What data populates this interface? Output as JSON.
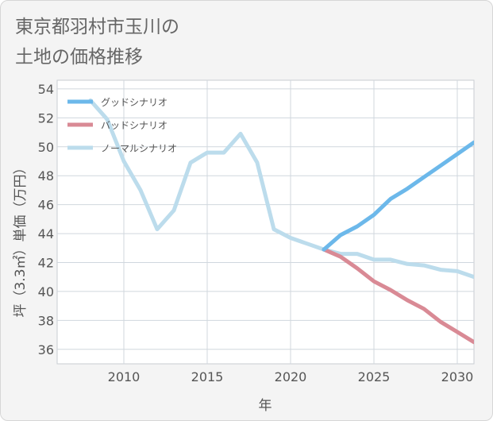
{
  "title_lines": [
    "東京都羽村市玉川の",
    "土地の価格推移"
  ],
  "chart_data": {
    "type": "line",
    "title": "東京都羽村市玉川の土地の価格推移",
    "xlabel": "年",
    "ylabel": "坪（3.3㎡）単価（万円）",
    "xlim": [
      2006,
      2031
    ],
    "ylim": [
      35,
      54.6
    ],
    "x_ticks": [
      2010,
      2015,
      2020,
      2025,
      2030
    ],
    "y_ticks": [
      36,
      38,
      40,
      42,
      44,
      46,
      48,
      50,
      52,
      54
    ],
    "grid": true,
    "legend_position": "top-left",
    "series": [
      {
        "name": "グッドシナリオ",
        "color": "#6cb8ea",
        "x": [
          2022,
          2023,
          2024,
          2025,
          2026,
          2027,
          2028,
          2029,
          2030,
          2031
        ],
        "y": [
          42.9,
          43.9,
          44.5,
          45.3,
          46.4,
          47.1,
          47.9,
          48.7,
          49.5,
          50.3
        ]
      },
      {
        "name": "バッドシナリオ",
        "color": "#d98a95",
        "x": [
          2022,
          2023,
          2024,
          2025,
          2026,
          2027,
          2028,
          2029,
          2030,
          2031
        ],
        "y": [
          42.9,
          42.4,
          41.6,
          40.7,
          40.1,
          39.4,
          38.8,
          37.9,
          37.2,
          36.5
        ]
      },
      {
        "name": "ノーマルシナリオ",
        "color": "#bcdcec",
        "x": [
          2008,
          2009,
          2010,
          2011,
          2012,
          2013,
          2014,
          2015,
          2016,
          2017,
          2018,
          2019,
          2020,
          2021,
          2022,
          2023,
          2024,
          2025,
          2026,
          2027,
          2028,
          2029,
          2030,
          2031
        ],
        "y": [
          53.2,
          51.9,
          49.0,
          47.0,
          44.3,
          45.6,
          48.9,
          49.6,
          49.6,
          50.9,
          48.9,
          44.3,
          43.7,
          43.3,
          42.9,
          42.6,
          42.6,
          42.2,
          42.2,
          41.9,
          41.8,
          41.5,
          41.4,
          41.0
        ]
      }
    ]
  }
}
